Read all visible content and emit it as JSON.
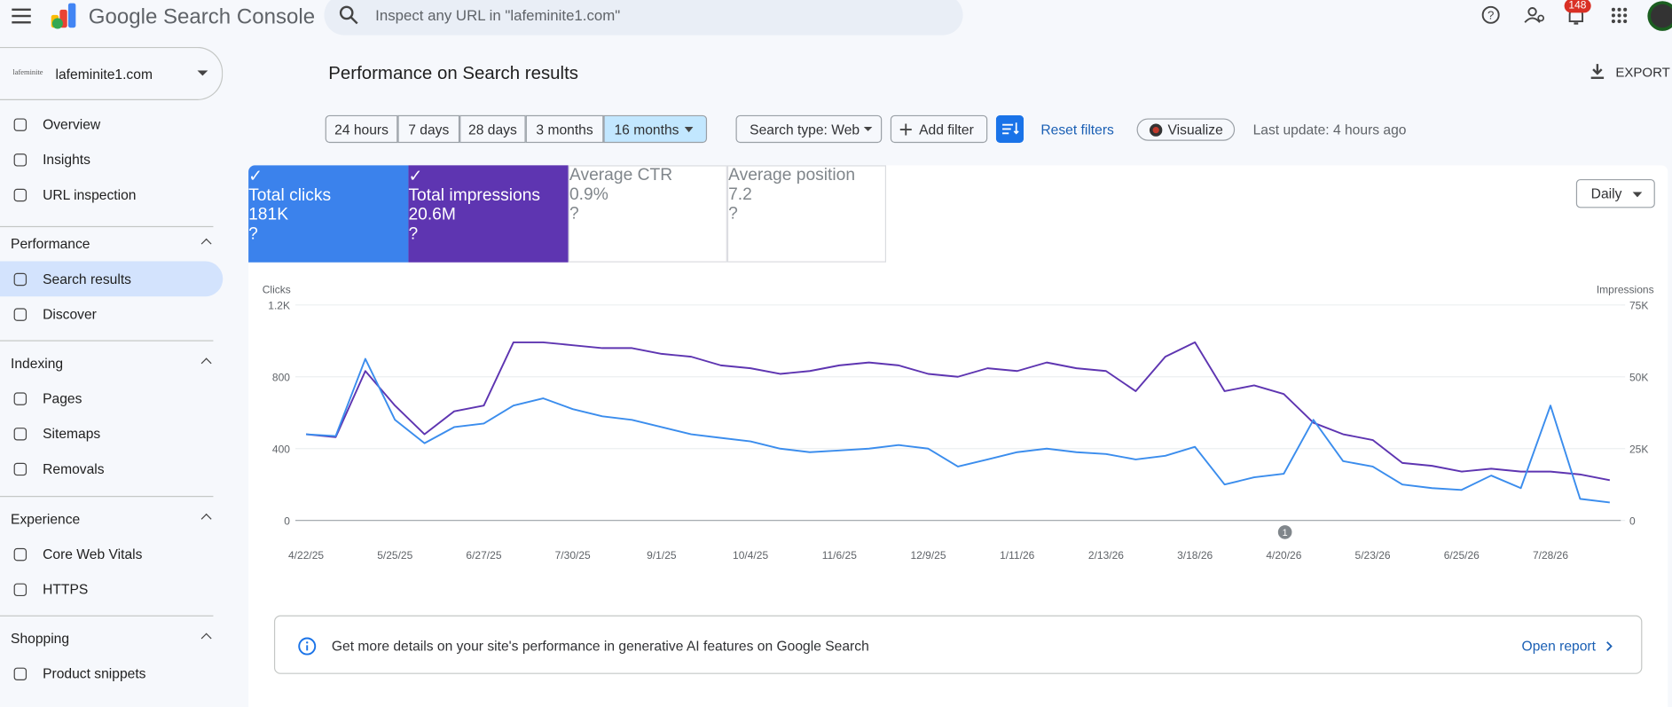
{
  "header": {
    "app_title": "Google Search Console",
    "search_placeholder": "Inspect any URL in \"lafeminite1.com\"",
    "notification_count": "148"
  },
  "sidebar": {
    "property": "lafeminite1.com",
    "top_items": [
      "Overview",
      "Insights",
      "URL inspection"
    ],
    "sections": [
      {
        "title": "Performance",
        "items": [
          "Search results",
          "Discover"
        ]
      },
      {
        "title": "Indexing",
        "items": [
          "Pages",
          "Sitemaps",
          "Removals"
        ]
      },
      {
        "title": "Experience",
        "items": [
          "Core Web Vitals",
          "HTTPS"
        ]
      },
      {
        "title": "Shopping",
        "items": [
          "Product snippets"
        ]
      }
    ]
  },
  "page": {
    "title": "Performance on Search results",
    "export": "EXPORT"
  },
  "filters": {
    "ranges": [
      "24 hours",
      "7 days",
      "28 days",
      "3 months",
      "16 months"
    ],
    "search_type": "Search type: Web",
    "add_filter": "Add filter",
    "reset": "Reset filters",
    "visualize": "Visualize",
    "last_update": "Last update: 4 hours ago"
  },
  "metrics": [
    {
      "label": "Total clicks",
      "value": "181K",
      "checked": true,
      "color": "#3b82ec"
    },
    {
      "label": "Total impressions",
      "value": "20.6M",
      "checked": true,
      "color": "#5e35b1"
    },
    {
      "label": "Average CTR",
      "value": "0.9%",
      "checked": false
    },
    {
      "label": "Average position",
      "value": "7.2",
      "checked": false
    }
  ],
  "granularity": "Daily",
  "chart_data": {
    "type": "line",
    "categories": [
      "4/22/25",
      null,
      null,
      "5/25/25",
      null,
      null,
      "6/27/25",
      null,
      null,
      "7/30/25",
      null,
      null,
      "9/1/25",
      null,
      null,
      "10/4/25",
      null,
      null,
      "11/6/25",
      null,
      null,
      "12/9/25",
      null,
      null,
      "1/11/26",
      null,
      null,
      "2/13/26",
      null,
      null,
      "3/18/26",
      null,
      null,
      "4/20/26",
      null,
      null,
      "5/23/26",
      null,
      null,
      "6/25/26",
      null,
      null,
      "7/28/26",
      null,
      null
    ],
    "series": [
      {
        "name": "Clicks",
        "color": "#3b8ded",
        "values": [
          480,
          470,
          900,
          560,
          430,
          520,
          540,
          640,
          680,
          620,
          580,
          560,
          520,
          480,
          460,
          440,
          400,
          380,
          390,
          400,
          420,
          400,
          300,
          340,
          380,
          400,
          380,
          370,
          340,
          360,
          410,
          200,
          240,
          260,
          560,
          330,
          300,
          200,
          180,
          170,
          250,
          180,
          640,
          120,
          100
        ]
      },
      {
        "name": "Impressions",
        "color": "#5e35b1",
        "axis": "y2",
        "values": [
          30000,
          29000,
          52000,
          40000,
          30000,
          38000,
          40000,
          62000,
          62000,
          61000,
          60000,
          60000,
          58000,
          57000,
          54000,
          53000,
          51000,
          52000,
          54000,
          55000,
          54000,
          51000,
          50000,
          53000,
          52000,
          55000,
          53000,
          52000,
          45000,
          57000,
          62000,
          45000,
          47000,
          44000,
          34000,
          30000,
          28000,
          20000,
          19000,
          17000,
          18000,
          17000,
          17000,
          16000,
          14000
        ]
      }
    ],
    "ylim": [
      0,
      1200
    ],
    "yticks": [
      0,
      400,
      800,
      {
        "value": 1200,
        "label": "1.2K"
      }
    ],
    "y2lim": [
      0,
      75000
    ],
    "y2ticks": [
      0,
      {
        "value": 25000,
        "label": "25K"
      },
      {
        "value": 50000,
        "label": "50K"
      },
      {
        "value": 75000,
        "label": "75K"
      }
    ],
    "grid": true,
    "annotation": "1"
  },
  "banner": {
    "text": "Get more details on your site's performance in generative AI features on Google Search",
    "link": "Open report"
  }
}
